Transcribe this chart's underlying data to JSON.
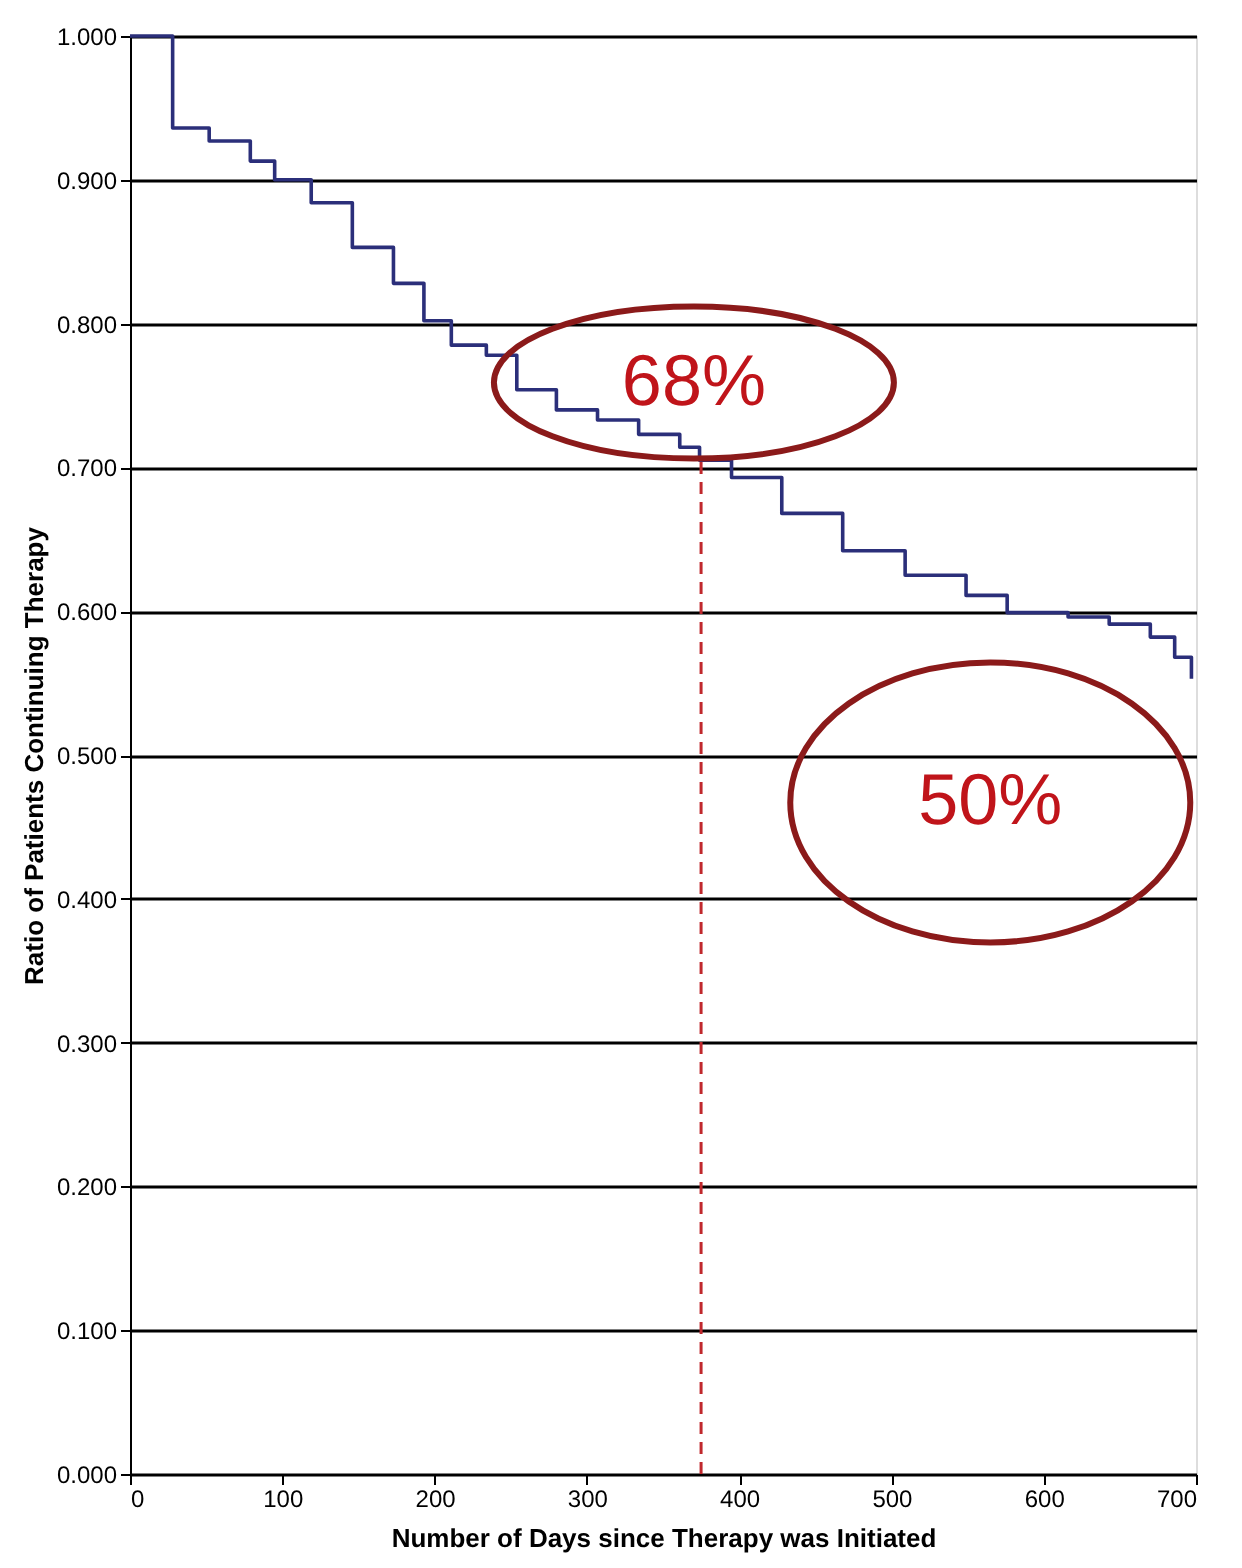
{
  "chart_data": {
    "type": "step",
    "xlabel": "Number of Days since Therapy was Initiated",
    "ylabel": "Ratio of Patients Continuing Therapy",
    "x": [
      0,
      28,
      52,
      79,
      95,
      119,
      146,
      173,
      193,
      211,
      234,
      254,
      280,
      307,
      334,
      361,
      374,
      395,
      428,
      468,
      509,
      549,
      576,
      616,
      643,
      670,
      686,
      697
    ],
    "series": [
      {
        "color": "#2b2f7a",
        "values": [
          1.0,
          0.936,
          0.927,
          0.913,
          0.9,
          0.884,
          0.853,
          0.828,
          0.802,
          0.785,
          0.778,
          0.754,
          0.74,
          0.733,
          0.723,
          0.714,
          0.705,
          0.693,
          0.668,
          0.642,
          0.625,
          0.611,
          0.599,
          0.596,
          0.591,
          0.582,
          0.568,
          0.553
        ]
      }
    ],
    "xlim": [
      0,
      700
    ],
    "xticks": [
      0,
      100,
      200,
      300,
      400,
      500,
      600,
      700
    ],
    "ylim": [
      0,
      1.0
    ],
    "yticks": [
      {
        "value": 0,
        "label": "0.000"
      },
      {
        "value": 0.1,
        "label": "0.100"
      },
      {
        "value": 0.2,
        "label": "0.200"
      },
      {
        "value": 0.3,
        "label": "0.300"
      },
      {
        "value": 0.4,
        "label": "0.400"
      },
      {
        "value": 0.5,
        "label": "0.500"
      },
      {
        "value": 0.6,
        "label": "0.600"
      },
      {
        "value": 0.7,
        "label": "0.700"
      },
      {
        "value": 0.8,
        "label": "0.800"
      },
      {
        "value": 0.9,
        "label": "0.900"
      },
      {
        "value": 1.0,
        "label": "1.000"
      }
    ],
    "grid": "y",
    "marker": "none",
    "line_style": "solid",
    "ref_lines": [
      {
        "axis": "x",
        "value": 375,
        "color": "#c0282d",
        "line_style": "dashed"
      }
    ],
    "annotations": [
      "68%",
      "50%"
    ]
  }
}
